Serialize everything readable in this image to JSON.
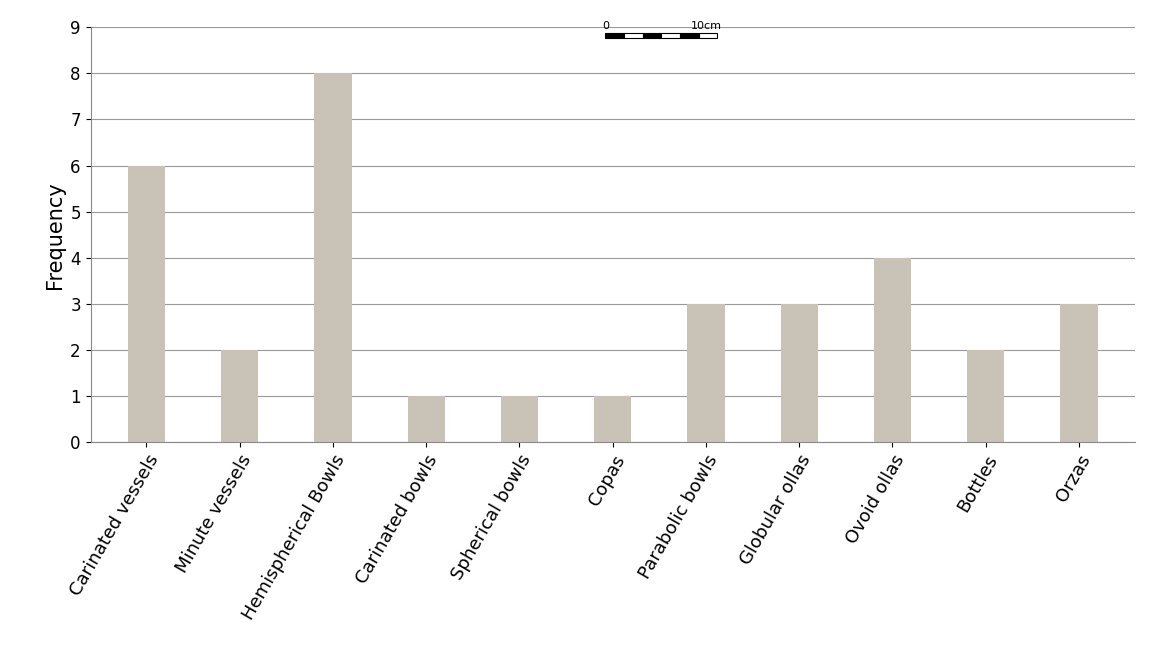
{
  "chart_data": {
    "type": "bar",
    "y_label": "Frequency",
    "categories": [
      "Carinated vessels",
      "Minute vessels",
      "Hemispherical Bowls",
      "Carinated bowls",
      "Spherical bowls",
      "Copas",
      "Parabolic bowls",
      "Globular ollas",
      "Ovoid ollas",
      "Bottles",
      "Orzas"
    ],
    "values": [
      6,
      2,
      8,
      1,
      1,
      1,
      3,
      3,
      4,
      2,
      3
    ],
    "color": "#c9c3b7",
    "ylim": [
      0,
      9
    ],
    "yticks": [
      0,
      1,
      2,
      3,
      4,
      5,
      6,
      7,
      8,
      9
    ],
    "grid": true,
    "annotations": [
      "0",
      "10cm"
    ]
  }
}
